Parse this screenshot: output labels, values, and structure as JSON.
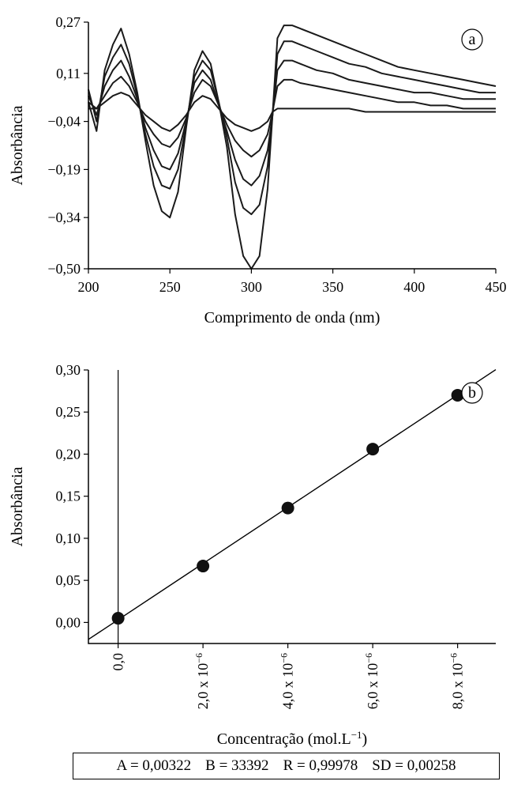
{
  "chart_data": [
    {
      "type": "line",
      "panel_label": "a",
      "xlabel": "Comprimento de onda (nm)",
      "ylabel": "Absorbância",
      "xlim": [
        200,
        450
      ],
      "ylim": [
        -0.5,
        0.27
      ],
      "xticks": [
        200,
        250,
        300,
        350,
        400,
        450
      ],
      "xtick_labels": [
        "200",
        "250",
        "300",
        "350",
        "400",
        "450"
      ],
      "yticks": [
        0.27,
        0.11,
        -0.04,
        -0.19,
        -0.34,
        -0.5
      ],
      "ytick_labels": [
        "0,27",
        "0,11",
        "−0,04",
        "−0,19",
        "−0,34",
        "−0,50"
      ],
      "x": [
        200,
        205,
        210,
        215,
        220,
        225,
        230,
        235,
        240,
        245,
        250,
        255,
        260,
        265,
        270,
        275,
        280,
        285,
        290,
        295,
        300,
        305,
        310,
        313,
        316,
        320,
        325,
        330,
        340,
        350,
        360,
        370,
        380,
        390,
        400,
        410,
        420,
        430,
        440,
        450
      ],
      "series": [
        {
          "values": [
            0.02,
            -0.07,
            0.12,
            0.2,
            0.25,
            0.17,
            0.05,
            -0.1,
            -0.24,
            -0.32,
            -0.34,
            -0.26,
            -0.06,
            0.12,
            0.18,
            0.14,
            0.02,
            -0.12,
            -0.33,
            -0.46,
            -0.5,
            -0.46,
            -0.25,
            -0.02,
            0.22,
            0.26,
            0.26,
            0.25,
            0.23,
            0.21,
            0.19,
            0.17,
            0.15,
            0.13,
            0.12,
            0.11,
            0.1,
            0.09,
            0.08,
            0.07
          ]
        },
        {
          "values": [
            0.06,
            -0.04,
            0.1,
            0.16,
            0.2,
            0.14,
            0.04,
            -0.08,
            -0.18,
            -0.24,
            -0.25,
            -0.19,
            -0.05,
            0.1,
            0.15,
            0.12,
            0.02,
            -0.09,
            -0.23,
            -0.31,
            -0.33,
            -0.3,
            -0.18,
            -0.02,
            0.17,
            0.21,
            0.21,
            0.2,
            0.18,
            0.16,
            0.14,
            0.13,
            0.11,
            0.1,
            0.09,
            0.08,
            0.07,
            0.06,
            0.05,
            0.05
          ]
        },
        {
          "values": [
            0.04,
            -0.02,
            0.07,
            0.12,
            0.15,
            0.1,
            0.03,
            -0.06,
            -0.13,
            -0.18,
            -0.19,
            -0.14,
            -0.04,
            0.08,
            0.12,
            0.09,
            0.01,
            -0.07,
            -0.16,
            -0.22,
            -0.24,
            -0.21,
            -0.13,
            -0.02,
            0.12,
            0.15,
            0.15,
            0.14,
            0.12,
            0.11,
            0.09,
            0.08,
            0.07,
            0.06,
            0.05,
            0.05,
            0.04,
            0.03,
            0.03,
            0.03
          ]
        },
        {
          "values": [
            0.02,
            0.0,
            0.04,
            0.08,
            0.1,
            0.07,
            0.02,
            -0.04,
            -0.08,
            -0.11,
            -0.12,
            -0.09,
            -0.03,
            0.05,
            0.09,
            0.07,
            0.01,
            -0.05,
            -0.1,
            -0.13,
            -0.15,
            -0.13,
            -0.08,
            -0.01,
            0.07,
            0.09,
            0.09,
            0.08,
            0.07,
            0.06,
            0.05,
            0.04,
            0.03,
            0.02,
            0.02,
            0.01,
            0.01,
            0.0,
            0.0,
            0.0
          ]
        },
        {
          "values": [
            0.0,
            0.0,
            0.02,
            0.04,
            0.05,
            0.04,
            0.01,
            -0.02,
            -0.04,
            -0.06,
            -0.07,
            -0.05,
            -0.02,
            0.02,
            0.04,
            0.03,
            0.0,
            -0.03,
            -0.05,
            -0.06,
            -0.07,
            -0.06,
            -0.04,
            -0.01,
            0.0,
            0.0,
            0.0,
            0.0,
            0.0,
            0.0,
            0.0,
            -0.01,
            -0.01,
            -0.01,
            -0.01,
            -0.01,
            -0.01,
            -0.01,
            -0.01,
            -0.01
          ]
        }
      ]
    },
    {
      "type": "scatter",
      "panel_label": "b",
      "xlabel": "Concentração (mol.L",
      "xlabel_sup": "−1",
      "xlabel_end": ")",
      "ylabel": "Absorbância",
      "xlim": [
        -0.7,
        8.9
      ],
      "ylim": [
        -0.025,
        0.3
      ],
      "yticks": [
        0.0,
        0.05,
        0.1,
        0.15,
        0.2,
        0.25,
        0.3
      ],
      "ytick_labels": [
        "0,00",
        "0,05",
        "0,10",
        "0,15",
        "0,20",
        "0,25",
        "0,30"
      ],
      "xtick_labels": [
        {
          "base": "0,0",
          "sup": ""
        },
        {
          "base": "2,0 x 10",
          "sup": "−6"
        },
        {
          "base": "4,0 x 10",
          "sup": "−6"
        },
        {
          "base": "6,0 x 10",
          "sup": "−6"
        },
        {
          "base": "8,0 x 10",
          "sup": "−6"
        }
      ],
      "x": [
        0,
        2,
        4,
        6,
        8
      ],
      "values": [
        0.005,
        0.067,
        0.136,
        0.206,
        0.27
      ],
      "fit": {
        "intercept": 0.00322,
        "slope_per_unit": 0.033392,
        "x_range": [
          -0.7,
          8.9
        ]
      },
      "stats": [
        "A = 0,00322",
        "B = 33392",
        "R = 0,99978",
        "SD = 0,00258"
      ]
    }
  ]
}
